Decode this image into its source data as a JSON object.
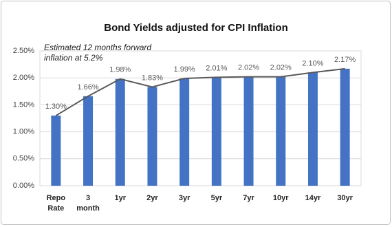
{
  "chart_data": {
    "type": "bar",
    "title": "Bond Yields adjusted for CPI Inflation",
    "annotation": "Estimated 12 months forward inflation at 5.2%",
    "categories": [
      "Repo Rate",
      "3 month",
      "1yr",
      "2yr",
      "3yr",
      "5yr",
      "7yr",
      "10yr",
      "14yr",
      "30yr"
    ],
    "values": [
      1.3,
      1.66,
      1.98,
      1.83,
      1.99,
      2.01,
      2.02,
      2.02,
      2.1,
      2.17
    ],
    "value_labels": [
      "1.30%",
      "1.66%",
      "1.98%",
      "1.83%",
      "1.99%",
      "2.01%",
      "2.02%",
      "2.02%",
      "2.10%",
      "2.17%"
    ],
    "color": "#4472c4",
    "line_overlay": true,
    "line_color": "#595959",
    "ylim": [
      0,
      2.5
    ],
    "yticks": [
      {
        "value": 0,
        "label": "0.00%"
      },
      {
        "value": 0.5,
        "label": "0.50%"
      },
      {
        "value": 1,
        "label": "1.00%"
      },
      {
        "value": 1.5,
        "label": "1.50%"
      },
      {
        "value": 2,
        "label": "2.00%"
      },
      {
        "value": 2.5,
        "label": "2.50%"
      }
    ],
    "grid": true
  }
}
